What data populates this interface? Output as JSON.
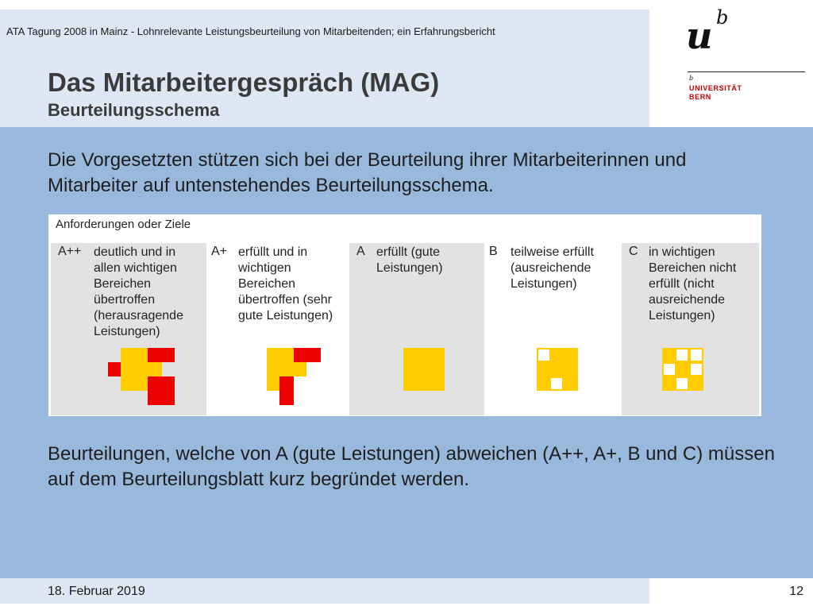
{
  "header": {
    "conference": "ATA Tagung 2008 in Mainz  -  Lohnrelevante Leistungsbeurteilung von Mitarbeitenden; ein Erfahrungsbericht",
    "title": "Das Mitarbeitergespräch (MAG)",
    "subtitle": "Beurteilungsschema"
  },
  "logo": {
    "mark_u": "u",
    "mark_b": "b",
    "small_b": "b",
    "line1": "UNIVERSITÄT",
    "line2": "BERN"
  },
  "intro": "Die Vorgesetzten stützen sich bei der Beurteilung ihrer Mitarbeiterinnen und Mitarbeiter auf untenstehendes Beurteilungsschema.",
  "schema": {
    "heading": "Anforderungen oder Ziele",
    "colors": {
      "yellow": "#ffcc00",
      "red": "#ee0000",
      "white": "#ffffff",
      "grey": "#e2e2e2"
    },
    "columns": [
      {
        "code": "A++",
        "description": "deutlich und in\nallen wichtigen\nBereichen\nübertroffen\n(herausragende\nLeistungen)",
        "pattern": "A++"
      },
      {
        "code": "A+",
        "description": "erfüllt und in\nwichtigen\nBereichen\nübertroffen (sehr\ngute Leistungen)",
        "pattern": "A+"
      },
      {
        "code": "A",
        "description": "erfüllt (gute\nLeistungen)",
        "pattern": "A"
      },
      {
        "code": "B",
        "description": "teilweise erfüllt\n(ausreichende\nLeistungen)",
        "pattern": "B"
      },
      {
        "code": "C",
        "description": "in wichtigen\nBereichen nicht\nerfüllt (nicht\nausreichende\nLeistungen)",
        "pattern": "C"
      }
    ]
  },
  "note": "Beurteilungen, welche von A (gute Leistungen) abweichen (A++, A+, B und C) müssen auf dem Beurteilungsblatt kurz begründet werden.",
  "footer": {
    "date": "18. Februar 2019",
    "page": "12"
  }
}
